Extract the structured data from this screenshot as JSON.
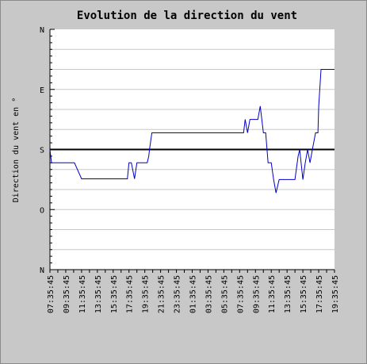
{
  "chart_data": {
    "type": "line",
    "title": "Evolution de la direction du vent",
    "ylabel": "Direction du vent en °",
    "xlabel": "",
    "y_tick_labels": [
      {
        "value": 0,
        "label": "N"
      },
      {
        "value": 90,
        "label": "E"
      },
      {
        "value": 180,
        "label": "S"
      },
      {
        "value": 270,
        "label": "O"
      },
      {
        "value": 360,
        "label": "N"
      }
    ],
    "ylim": [
      0,
      360
    ],
    "x_tick_labels": [
      "07:35:45",
      "09:35:45",
      "11:35:45",
      "13:35:45",
      "15:35:45",
      "17:35:45",
      "19:35:45",
      "21:35:45",
      "23:35:45",
      "01:35:45",
      "03:35:45",
      "05:35:45",
      "07:35:45",
      "09:35:45",
      "11:35:45",
      "13:35:45",
      "15:35:45",
      "17:35:45",
      "19:35:45"
    ],
    "x_range_hours": [
      0,
      36
    ],
    "grid": true,
    "reference_line": {
      "value": 180
    },
    "colors": {
      "series": "#0000c8",
      "reference": "#000000",
      "grid": "#c8c8c8",
      "frame": "#c8c8c8"
    },
    "series": [
      {
        "x": [
          0,
          0.2,
          0.4,
          1,
          2,
          3,
          3.1,
          4,
          6,
          8,
          9.5,
          9.8,
          10,
          10.3,
          10.7,
          11,
          12,
          12.3,
          12.5,
          12.6,
          12.9,
          13.2,
          14,
          20,
          24.5,
          24.7,
          25,
          25.3,
          26,
          26.3,
          26.6,
          26.8,
          27,
          27.3,
          27.6,
          28,
          28.3,
          28.6,
          29,
          30,
          31,
          31.4,
          31.6,
          32,
          32.3,
          32.6,
          32.9,
          33.2,
          33.6,
          33.9,
          34,
          34.3,
          34.6,
          36
        ],
        "y": [
          180,
          200,
          200,
          200,
          200,
          200,
          200,
          224,
          224,
          224,
          224,
          224,
          200,
          200,
          224,
          200,
          200,
          200,
          190,
          180,
          155,
          155,
          155,
          155,
          155,
          135,
          155,
          135,
          135,
          135,
          115,
          135,
          155,
          155,
          200,
          200,
          225,
          245,
          225,
          225,
          225,
          190,
          180,
          225,
          200,
          180,
          200,
          180,
          155,
          155,
          115,
          60,
          60,
          60
        ]
      }
    ]
  }
}
